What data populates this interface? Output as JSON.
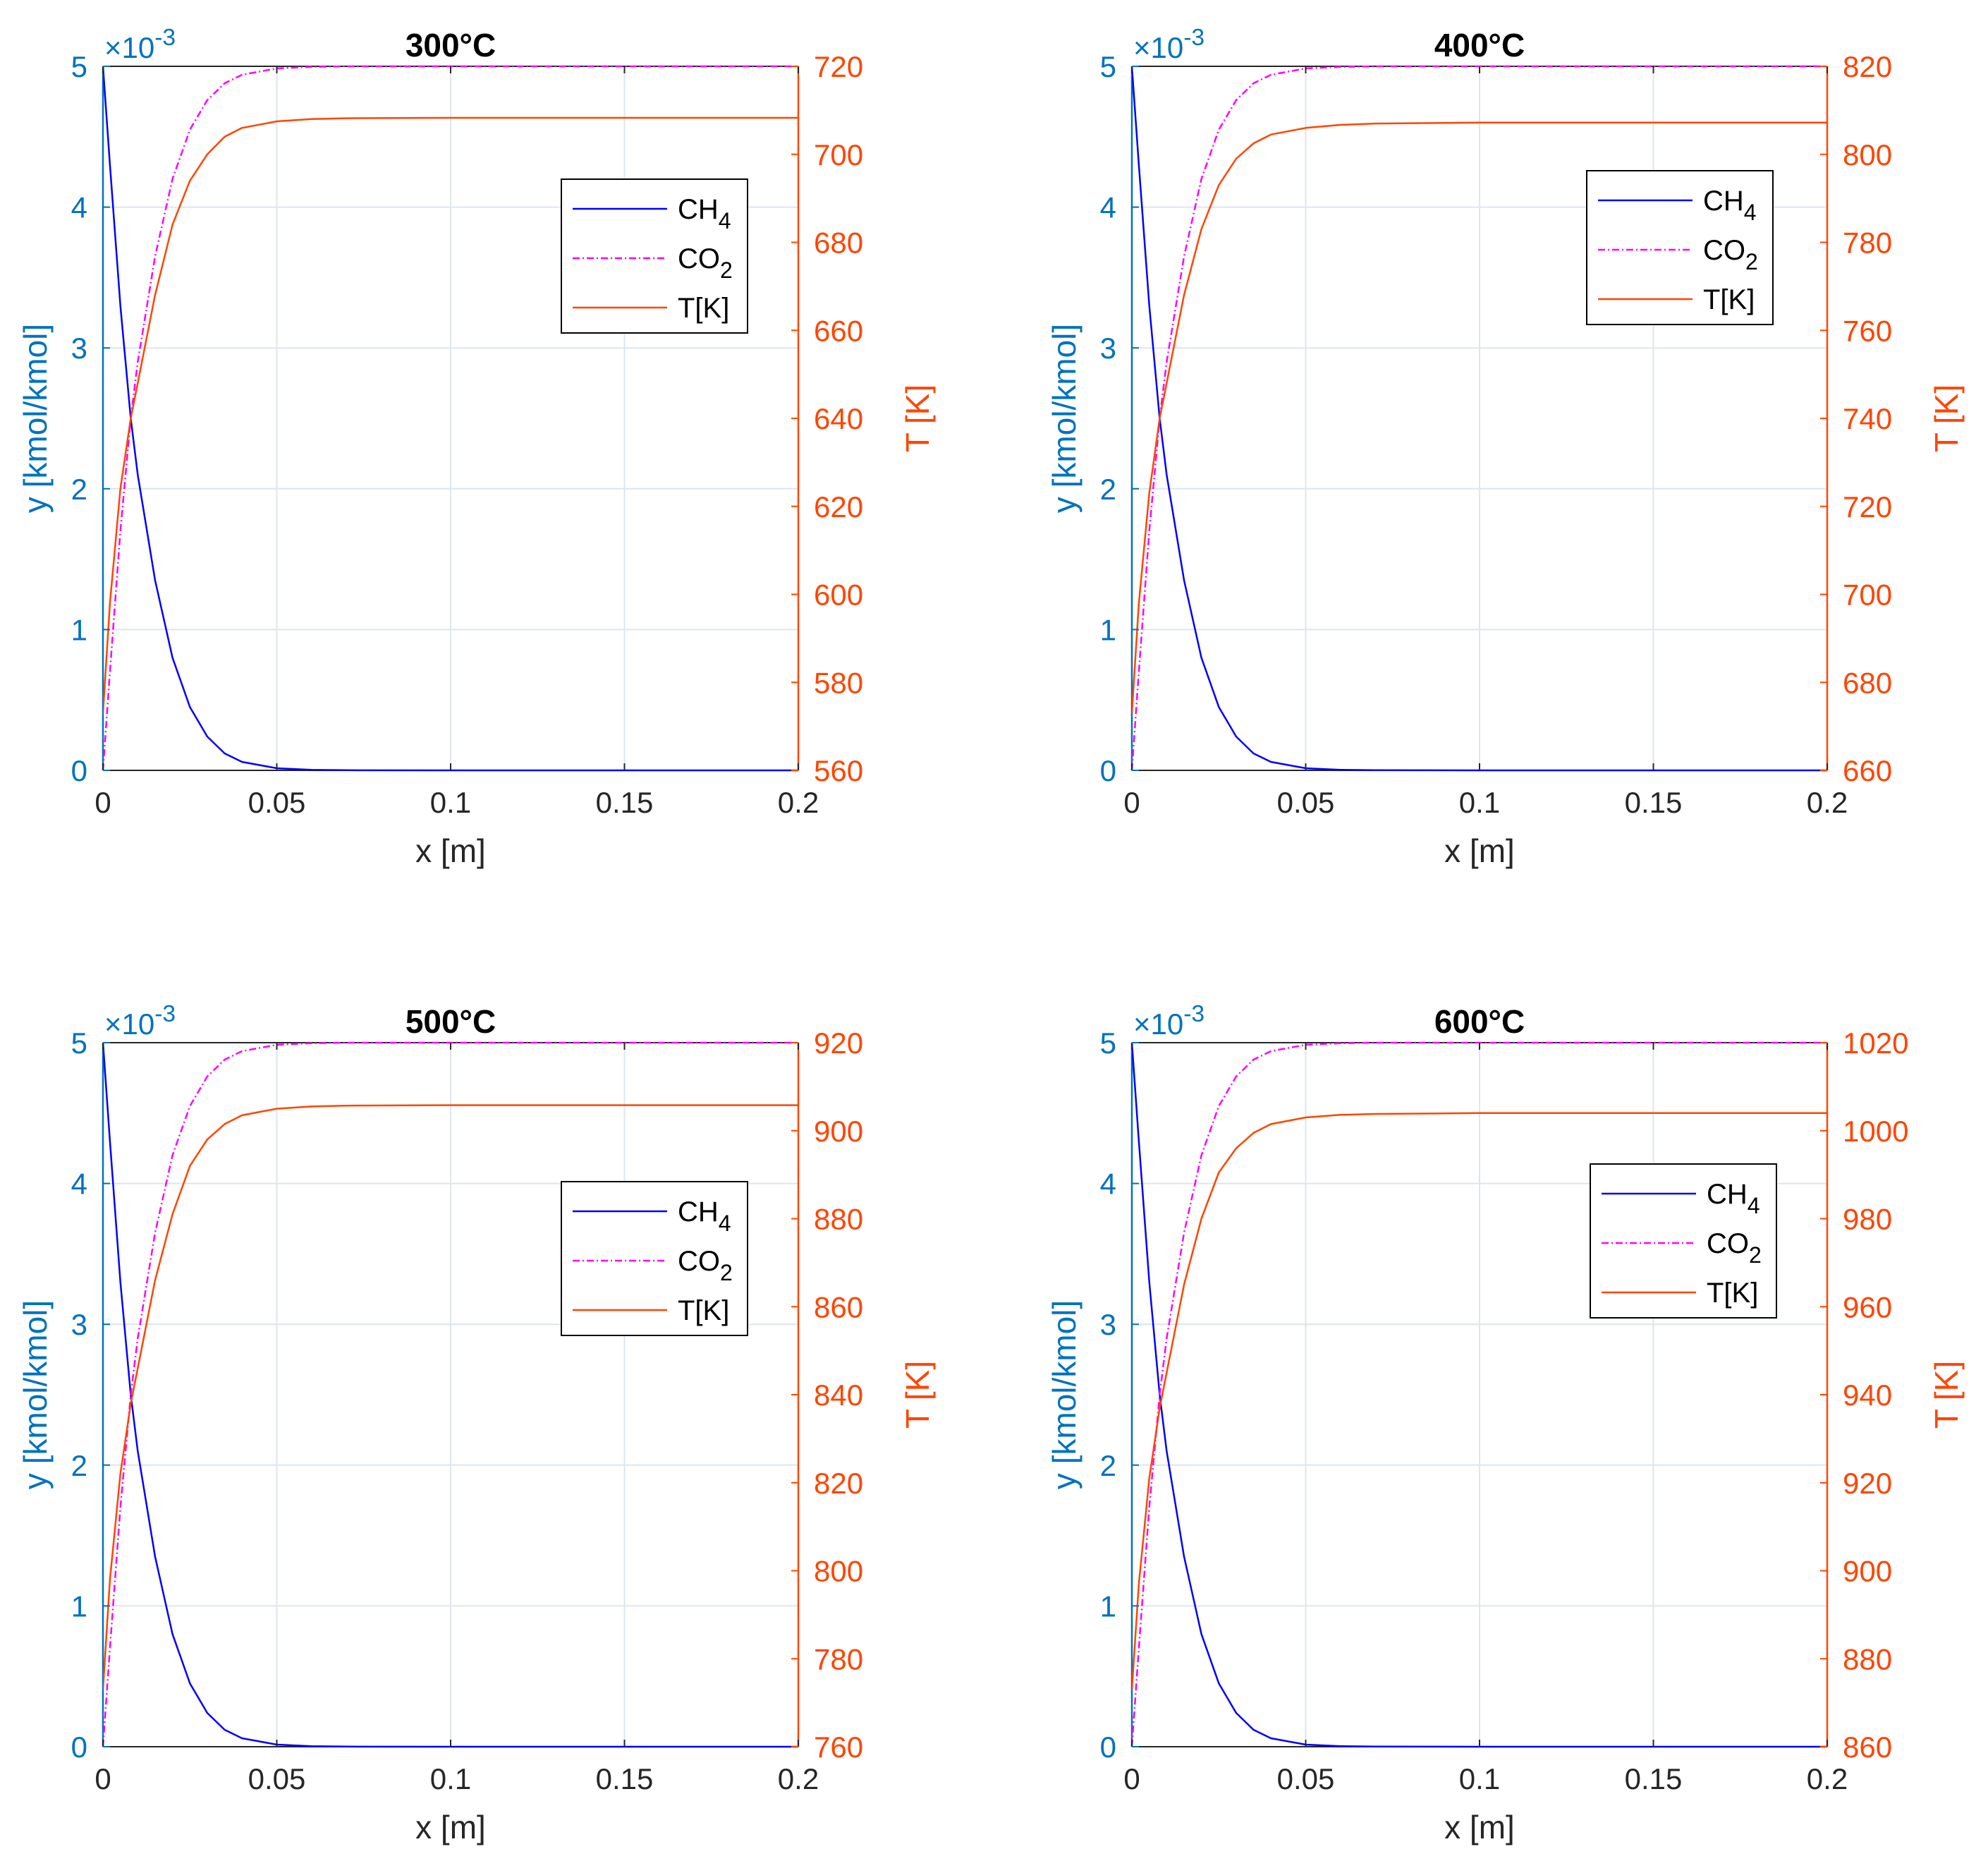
{
  "colors": {
    "left_axis": "#0072BD",
    "right_axis": "#FF4500",
    "ch4": "#0000FF",
    "co2": "#FF00FF",
    "temp": "#FF4500",
    "grid": "#DCE6F0",
    "frame": "#262626",
    "legend_border": "#000000",
    "background": "#FFFFFF"
  },
  "chart_data": [
    {
      "type": "line",
      "title": "300°C",
      "xlabel": "x [m]",
      "ylabel_left": "y [kmol/kmol]",
      "ylabel_right": "T [K]",
      "left_exponent_base": "×10",
      "left_exponent_power": "-3",
      "xlim": [
        0,
        0.2
      ],
      "xticks": [
        0,
        0.05,
        0.1,
        0.15,
        0.2
      ],
      "xtick_labels": [
        "0",
        "0.05",
        "0.1",
        "0.15",
        "0.2"
      ],
      "ylim_left": [
        0,
        5
      ],
      "yticks_left": [
        0,
        1,
        2,
        3,
        4,
        5
      ],
      "ytick_labels_left": [
        "0",
        "1",
        "2",
        "3",
        "4",
        "5"
      ],
      "ylim_right": [
        560,
        720
      ],
      "yticks_right": [
        560,
        580,
        600,
        620,
        640,
        660,
        680,
        700,
        720
      ],
      "ytick_labels_right": [
        "560",
        "580",
        "600",
        "620",
        "640",
        "660",
        "680",
        "700",
        "720"
      ],
      "grid": true,
      "legend_location": "right-upper",
      "legend": [
        {
          "label": "CH",
          "sub": "4",
          "series": "CH4"
        },
        {
          "label": "CO",
          "sub": "2",
          "series": "CO2"
        },
        {
          "label": "T[K]",
          "sub": "",
          "series": "T"
        }
      ],
      "series": [
        {
          "name": "CH4",
          "axis": "left",
          "style": "solid",
          "x": [
            0,
            0.002,
            0.005,
            0.008,
            0.01,
            0.015,
            0.02,
            0.025,
            0.03,
            0.035,
            0.04,
            0.05,
            0.06,
            0.07,
            0.1,
            0.15,
            0.2
          ],
          "y": [
            5.0,
            4.3,
            3.3,
            2.5,
            2.1,
            1.35,
            0.8,
            0.45,
            0.24,
            0.12,
            0.06,
            0.015,
            0.004,
            0.001,
            0,
            0,
            0
          ]
        },
        {
          "name": "CO2",
          "axis": "left",
          "style": "dashdot",
          "x": [
            0,
            0.002,
            0.005,
            0.008,
            0.01,
            0.015,
            0.02,
            0.025,
            0.03,
            0.035,
            0.04,
            0.05,
            0.06,
            0.07,
            0.1,
            0.15,
            0.2
          ],
          "y": [
            0.0,
            0.7,
            1.7,
            2.5,
            2.9,
            3.65,
            4.2,
            4.55,
            4.76,
            4.88,
            4.94,
            4.985,
            4.996,
            5.0,
            5.0,
            5.0,
            5.0
          ]
        },
        {
          "name": "T[K]",
          "axis": "right",
          "style": "solid",
          "x": [
            0,
            0.002,
            0.005,
            0.008,
            0.01,
            0.015,
            0.02,
            0.025,
            0.03,
            0.035,
            0.04,
            0.05,
            0.06,
            0.07,
            0.1,
            0.15,
            0.2
          ],
          "y": [
            573,
            598,
            624,
            640,
            648,
            668,
            684,
            694,
            700,
            704,
            706,
            707.5,
            708,
            708.2,
            708.3,
            708.3,
            708.3
          ]
        }
      ]
    },
    {
      "type": "line",
      "title": "400°C",
      "xlabel": "x [m]",
      "ylabel_left": "y [kmol/kmol]",
      "ylabel_right": "T [K]",
      "left_exponent_base": "×10",
      "left_exponent_power": "-3",
      "xlim": [
        0,
        0.2
      ],
      "xticks": [
        0,
        0.05,
        0.1,
        0.15,
        0.2
      ],
      "xtick_labels": [
        "0",
        "0.05",
        "0.1",
        "0.15",
        "0.2"
      ],
      "ylim_left": [
        0,
        5
      ],
      "yticks_left": [
        0,
        1,
        2,
        3,
        4,
        5
      ],
      "ytick_labels_left": [
        "0",
        "1",
        "2",
        "3",
        "4",
        "5"
      ],
      "ylim_right": [
        660,
        820
      ],
      "yticks_right": [
        660,
        680,
        700,
        720,
        740,
        760,
        780,
        800,
        820
      ],
      "ytick_labels_right": [
        "660",
        "680",
        "700",
        "720",
        "740",
        "760",
        "780",
        "800",
        "820"
      ],
      "grid": true,
      "legend_location": "right-upper",
      "legend": [
        {
          "label": "CH",
          "sub": "4",
          "series": "CH4"
        },
        {
          "label": "CO",
          "sub": "2",
          "series": "CO2"
        },
        {
          "label": "T[K]",
          "sub": "",
          "series": "T"
        }
      ],
      "series": [
        {
          "name": "CH4",
          "axis": "left",
          "style": "solid",
          "x": [
            0,
            0.002,
            0.005,
            0.008,
            0.01,
            0.015,
            0.02,
            0.025,
            0.03,
            0.035,
            0.04,
            0.05,
            0.06,
            0.07,
            0.1,
            0.15,
            0.2
          ],
          "y": [
            5.0,
            4.3,
            3.3,
            2.5,
            2.1,
            1.35,
            0.8,
            0.45,
            0.24,
            0.12,
            0.06,
            0.015,
            0.004,
            0.001,
            0,
            0,
            0
          ]
        },
        {
          "name": "CO2",
          "axis": "left",
          "style": "dashdot",
          "x": [
            0,
            0.002,
            0.005,
            0.008,
            0.01,
            0.015,
            0.02,
            0.025,
            0.03,
            0.035,
            0.04,
            0.05,
            0.06,
            0.07,
            0.1,
            0.15,
            0.2
          ],
          "y": [
            0.0,
            0.7,
            1.7,
            2.5,
            2.9,
            3.65,
            4.2,
            4.55,
            4.76,
            4.88,
            4.94,
            4.985,
            4.996,
            5.0,
            5.0,
            5.0,
            5.0
          ]
        },
        {
          "name": "T[K]",
          "axis": "right",
          "style": "solid",
          "x": [
            0,
            0.002,
            0.005,
            0.008,
            0.01,
            0.015,
            0.02,
            0.025,
            0.03,
            0.035,
            0.04,
            0.05,
            0.06,
            0.07,
            0.1,
            0.15,
            0.2
          ],
          "y": [
            673,
            698,
            723,
            740,
            748,
            768,
            783,
            793,
            799,
            802.5,
            804.5,
            806,
            806.7,
            807,
            807.2,
            807.2,
            807.2
          ]
        }
      ]
    },
    {
      "type": "line",
      "title": "500°C",
      "xlabel": "x [m]",
      "ylabel_left": "y [kmol/kmol]",
      "ylabel_right": "T [K]",
      "left_exponent_base": "×10",
      "left_exponent_power": "-3",
      "xlim": [
        0,
        0.2
      ],
      "xticks": [
        0,
        0.05,
        0.1,
        0.15,
        0.2
      ],
      "xtick_labels": [
        "0",
        "0.05",
        "0.1",
        "0.15",
        "0.2"
      ],
      "ylim_left": [
        0,
        5
      ],
      "yticks_left": [
        0,
        1,
        2,
        3,
        4,
        5
      ],
      "ytick_labels_left": [
        "0",
        "1",
        "2",
        "3",
        "4",
        "5"
      ],
      "ylim_right": [
        760,
        920
      ],
      "yticks_right": [
        760,
        780,
        800,
        820,
        840,
        860,
        880,
        900,
        920
      ],
      "ytick_labels_right": [
        "760",
        "780",
        "800",
        "820",
        "840",
        "860",
        "880",
        "900",
        "920"
      ],
      "grid": true,
      "legend_location": "right-middle",
      "legend": [
        {
          "label": "CH",
          "sub": "4",
          "series": "CH4"
        },
        {
          "label": "CO",
          "sub": "2",
          "series": "CO2"
        },
        {
          "label": "T[K]",
          "sub": "",
          "series": "T"
        }
      ],
      "series": [
        {
          "name": "CH4",
          "axis": "left",
          "style": "solid",
          "x": [
            0,
            0.002,
            0.005,
            0.008,
            0.01,
            0.015,
            0.02,
            0.025,
            0.03,
            0.035,
            0.04,
            0.05,
            0.06,
            0.07,
            0.1,
            0.15,
            0.2
          ],
          "y": [
            5.0,
            4.3,
            3.3,
            2.5,
            2.1,
            1.35,
            0.8,
            0.45,
            0.24,
            0.12,
            0.06,
            0.015,
            0.004,
            0.001,
            0,
            0,
            0
          ]
        },
        {
          "name": "CO2",
          "axis": "left",
          "style": "dashdot",
          "x": [
            0,
            0.002,
            0.005,
            0.008,
            0.01,
            0.015,
            0.02,
            0.025,
            0.03,
            0.035,
            0.04,
            0.05,
            0.06,
            0.07,
            0.1,
            0.15,
            0.2
          ],
          "y": [
            0.0,
            0.7,
            1.7,
            2.5,
            2.9,
            3.65,
            4.2,
            4.55,
            4.76,
            4.88,
            4.94,
            4.985,
            4.996,
            5.0,
            5.0,
            5.0,
            5.0
          ]
        },
        {
          "name": "T[K]",
          "axis": "right",
          "style": "solid",
          "x": [
            0,
            0.002,
            0.005,
            0.008,
            0.01,
            0.015,
            0.02,
            0.025,
            0.03,
            0.035,
            0.04,
            0.05,
            0.06,
            0.07,
            0.1,
            0.15,
            0.2
          ],
          "y": [
            773,
            798,
            822,
            838,
            846,
            866,
            881,
            892,
            898,
            901.5,
            903.5,
            905,
            905.5,
            905.7,
            905.8,
            905.8,
            905.8
          ]
        }
      ]
    },
    {
      "type": "line",
      "title": "600°C",
      "xlabel": "x [m]",
      "ylabel_left": "y [kmol/kmol]",
      "ylabel_right": "T [K]",
      "left_exponent_base": "×10",
      "left_exponent_power": "-3",
      "xlim": [
        0,
        0.2
      ],
      "xticks": [
        0,
        0.05,
        0.1,
        0.15,
        0.2
      ],
      "xtick_labels": [
        "0",
        "0.05",
        "0.1",
        "0.15",
        "0.2"
      ],
      "ylim_left": [
        0,
        5
      ],
      "yticks_left": [
        0,
        1,
        2,
        3,
        4,
        5
      ],
      "ytick_labels_left": [
        "0",
        "1",
        "2",
        "3",
        "4",
        "5"
      ],
      "ylim_right": [
        860,
        1020
      ],
      "yticks_right": [
        860,
        880,
        900,
        920,
        940,
        960,
        980,
        1000,
        1020
      ],
      "ytick_labels_right": [
        "860",
        "880",
        "900",
        "920",
        "940",
        "960",
        "980",
        "1000",
        "1020"
      ],
      "grid": true,
      "legend_location": "right-middle",
      "legend": [
        {
          "label": "CH",
          "sub": "4",
          "series": "CH4"
        },
        {
          "label": "CO",
          "sub": "2",
          "series": "CO2"
        },
        {
          "label": "T[K]",
          "sub": "",
          "series": "T"
        }
      ],
      "series": [
        {
          "name": "CH4",
          "axis": "left",
          "style": "solid",
          "x": [
            0,
            0.002,
            0.005,
            0.008,
            0.01,
            0.015,
            0.02,
            0.025,
            0.03,
            0.035,
            0.04,
            0.05,
            0.06,
            0.07,
            0.1,
            0.15,
            0.2
          ],
          "y": [
            5.0,
            4.3,
            3.3,
            2.5,
            2.1,
            1.35,
            0.8,
            0.45,
            0.24,
            0.12,
            0.06,
            0.015,
            0.004,
            0.001,
            0,
            0,
            0
          ]
        },
        {
          "name": "CO2",
          "axis": "left",
          "style": "dashdot",
          "x": [
            0,
            0.002,
            0.005,
            0.008,
            0.01,
            0.015,
            0.02,
            0.025,
            0.03,
            0.035,
            0.04,
            0.05,
            0.06,
            0.07,
            0.1,
            0.15,
            0.2
          ],
          "y": [
            0.0,
            0.7,
            1.7,
            2.5,
            2.9,
            3.65,
            4.2,
            4.55,
            4.76,
            4.88,
            4.94,
            4.985,
            4.996,
            5.0,
            5.0,
            5.0,
            5.0
          ]
        },
        {
          "name": "T[K]",
          "axis": "right",
          "style": "solid",
          "x": [
            0,
            0.002,
            0.005,
            0.008,
            0.01,
            0.015,
            0.02,
            0.025,
            0.03,
            0.035,
            0.04,
            0.05,
            0.06,
            0.07,
            0.1,
            0.15,
            0.2
          ],
          "y": [
            873,
            897,
            921,
            937,
            945,
            965,
            980,
            990.5,
            996,
            999.5,
            1001.5,
            1003,
            1003.6,
            1003.8,
            1004,
            1004,
            1004
          ]
        }
      ]
    }
  ]
}
